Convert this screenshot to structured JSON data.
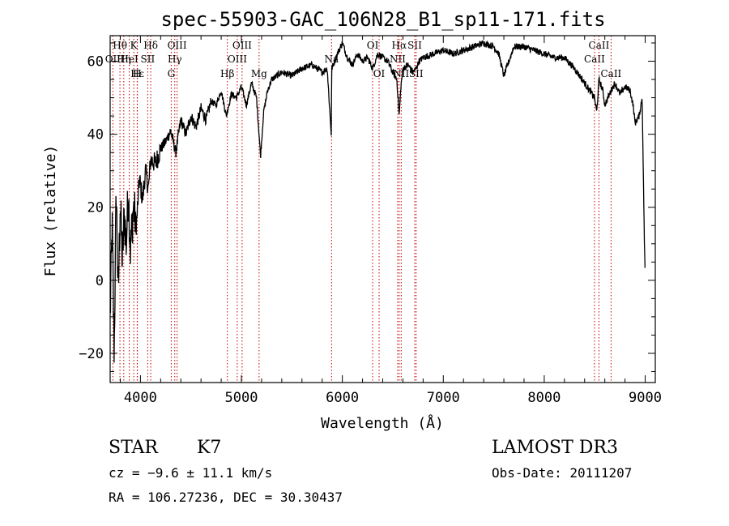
{
  "chart_data": {
    "type": "line",
    "title": "spec-55903-GAC_106N28_B1_sp11-171.fits",
    "xlabel": "Wavelength (Å)",
    "ylabel": "Flux (relative)",
    "xlim": [
      3700,
      9100
    ],
    "ylim": [
      -28,
      67
    ],
    "x_ticks": [
      4000,
      5000,
      6000,
      7000,
      8000,
      9000
    ],
    "y_ticks": [
      -20,
      0,
      20,
      40,
      60
    ],
    "series": [
      {
        "name": "flux",
        "x": [
          3700,
          3720,
          3740,
          3760,
          3780,
          3800,
          3820,
          3840,
          3860,
          3880,
          3900,
          3930,
          3960,
          3990,
          4020,
          4050,
          4080,
          4100,
          4150,
          4200,
          4250,
          4300,
          4350,
          4400,
          4450,
          4500,
          4550,
          4600,
          4650,
          4700,
          4750,
          4800,
          4850,
          4900,
          4950,
          5000,
          5050,
          5100,
          5150,
          5190,
          5220,
          5260,
          5300,
          5400,
          5500,
          5600,
          5700,
          5800,
          5850,
          5890,
          5895,
          5910,
          5950,
          6000,
          6050,
          6100,
          6150,
          6200,
          6250,
          6300,
          6350,
          6400,
          6450,
          6500,
          6540,
          6563,
          6580,
          6600,
          6650,
          6700,
          6730,
          6760,
          6800,
          6900,
          7000,
          7100,
          7200,
          7300,
          7400,
          7500,
          7550,
          7600,
          7650,
          7700,
          7800,
          7900,
          8000,
          8100,
          8200,
          8300,
          8400,
          8450,
          8498,
          8520,
          8542,
          8580,
          8600,
          8662,
          8700,
          8750,
          8800,
          8850,
          8880,
          8900,
          8940,
          8970,
          8990,
          9000
        ],
        "y": [
          -10,
          15,
          -20,
          25,
          -5,
          22,
          5,
          18,
          10,
          25,
          8,
          20,
          15,
          28,
          22,
          30,
          25,
          33,
          32,
          36,
          38,
          41,
          35,
          44,
          40,
          45,
          42,
          47,
          44,
          49,
          48,
          52,
          45,
          51,
          50,
          53,
          48,
          54,
          50,
          34,
          46,
          52,
          55,
          57,
          56,
          58,
          59,
          57,
          58,
          40,
          58,
          59,
          62,
          65,
          61,
          59,
          62,
          60,
          61,
          58,
          62,
          61,
          60,
          57,
          55,
          45,
          53,
          58,
          59,
          57,
          58,
          60,
          61,
          62,
          63,
          62,
          63,
          64,
          65,
          64,
          62,
          56,
          60,
          64,
          64,
          63,
          62,
          61,
          61,
          58,
          54,
          52,
          50,
          46,
          55,
          52,
          48,
          52,
          54,
          51,
          53,
          52,
          48,
          43,
          45,
          50,
          14,
          0
        ]
      }
    ],
    "line_markers": [
      {
        "label": "Hθ",
        "wave": 3797,
        "row": 0
      },
      {
        "label": "OII",
        "wave": 3727,
        "row": 1
      },
      {
        "label": "Hη",
        "wave": 3835,
        "row": 1
      },
      {
        "label": "HeI",
        "wave": 3889,
        "row": 1
      },
      {
        "label": "K",
        "wave": 3934,
        "row": 0
      },
      {
        "label": "H",
        "wave": 3968,
        "row": 2
      },
      {
        "label": "SII",
        "wave": 4072,
        "row": 1
      },
      {
        "label": "Hδ",
        "wave": 4102,
        "row": 0
      },
      {
        "label": "Hε",
        "wave": 3970,
        "row": 2
      },
      {
        "label": "G",
        "wave": 4305,
        "row": 2
      },
      {
        "label": "Hγ",
        "wave": 4340,
        "row": 1
      },
      {
        "label": "OIII",
        "wave": 4363,
        "row": 0
      },
      {
        "label": "Hβ",
        "wave": 4861,
        "row": 2
      },
      {
        "label": "OIII",
        "wave": 4959,
        "row": 1
      },
      {
        "label": "OIII",
        "wave": 5007,
        "row": 0
      },
      {
        "label": "Mg",
        "wave": 5175,
        "row": 2
      },
      {
        "label": "Na",
        "wave": 5893,
        "row": 3
      },
      {
        "label": "OI",
        "wave": 6300,
        "row": 0
      },
      {
        "label": "OI",
        "wave": 6364,
        "row": 2
      },
      {
        "label": "NII",
        "wave": 6548,
        "row": 1
      },
      {
        "label": "Hα",
        "wave": 6563,
        "row": 0
      },
      {
        "label": "NII",
        "wave": 6583,
        "row": 2
      },
      {
        "label": "SII",
        "wave": 6717,
        "row": 0
      },
      {
        "label": "SII",
        "wave": 6731,
        "row": 2
      },
      {
        "label": "CaII",
        "wave": 8498,
        "row": 1
      },
      {
        "label": "CaII",
        "wave": 8542,
        "row": 0
      },
      {
        "label": "CaII",
        "wave": 8662,
        "row": 2
      }
    ]
  },
  "info": {
    "class_label": "STAR",
    "subclass": "K7",
    "survey": "LAMOST DR3",
    "cz": "cz = −9.6 ± 11.1 km/s",
    "obs_date": "Obs-Date: 20111207",
    "coords": "RA = 106.27236, DEC =  30.30437"
  }
}
